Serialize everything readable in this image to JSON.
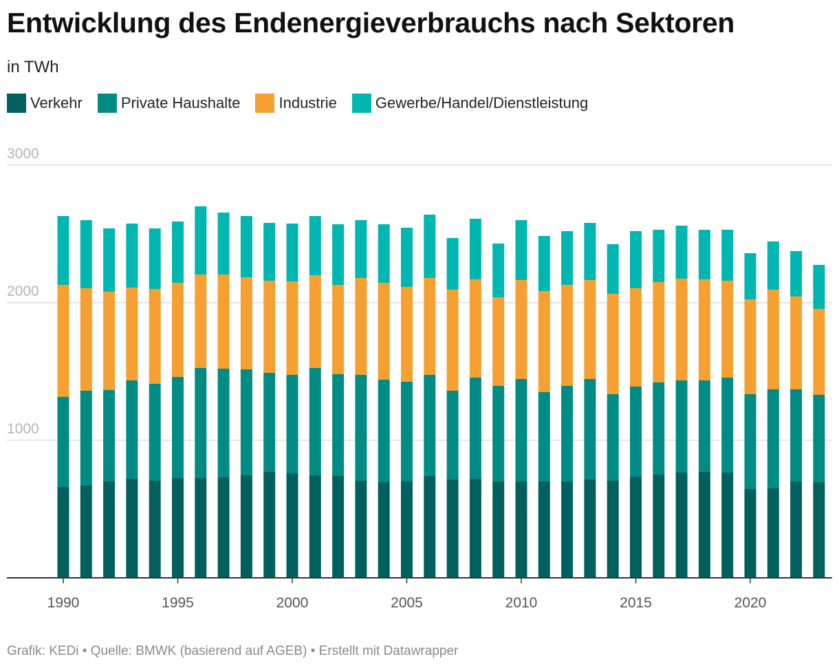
{
  "header": {
    "title": "Entwicklung des Endenergieverbrauchs nach Sektoren",
    "subtitle": "in TWh"
  },
  "footer": {
    "text": "Grafik: KEDi • Quelle: BMWK (basierend auf AGEB) • Erstellt mit Datawrapper"
  },
  "legend": [
    {
      "label": "Verkehr",
      "color": "#00605d"
    },
    {
      "label": "Private Haushalte",
      "color": "#008c85"
    },
    {
      "label": "Industrie",
      "color": "#f5a030"
    },
    {
      "label": "Gewerbe/Handel/Dienstleistung",
      "color": "#00b6b0"
    }
  ],
  "chart_data": {
    "type": "bar",
    "stacked": true,
    "title": "Entwicklung des Endenergieverbrauchs nach Sektoren",
    "subtitle": "in TWh",
    "ylim": [
      0,
      3000
    ],
    "y_ticks": [
      1000,
      2000,
      3000
    ],
    "x_ticks": [
      1990,
      1995,
      2000,
      2005,
      2010,
      2015,
      2020
    ],
    "grid": true,
    "legend_position": "top-left",
    "categories": [
      1990,
      1991,
      1992,
      1993,
      1994,
      1995,
      1996,
      1997,
      1998,
      1999,
      2000,
      2001,
      2002,
      2003,
      2004,
      2005,
      2006,
      2007,
      2008,
      2009,
      2010,
      2011,
      2012,
      2013,
      2014,
      2015,
      2016,
      2017,
      2018,
      2019,
      2020,
      2021,
      2022,
      2023
    ],
    "series": [
      {
        "name": "Verkehr",
        "color": "#00605d",
        "values": [
          660,
          670,
          700,
          720,
          705,
          725,
          725,
          730,
          745,
          770,
          760,
          745,
          740,
          705,
          695,
          700,
          740,
          715,
          720,
          700,
          700,
          700,
          700,
          715,
          705,
          735,
          750,
          765,
          770,
          765,
          645,
          650,
          700,
          695
        ]
      },
      {
        "name": "Private Haushalte",
        "color": "#008c85",
        "values": [
          655,
          690,
          665,
          715,
          705,
          735,
          800,
          790,
          770,
          720,
          715,
          780,
          740,
          770,
          745,
          725,
          735,
          645,
          735,
          695,
          745,
          650,
          695,
          730,
          630,
          655,
          670,
          670,
          665,
          690,
          690,
          720,
          670,
          635
        ]
      },
      {
        "name": "Industrie",
        "color": "#f5a030",
        "values": [
          815,
          745,
          715,
          675,
          690,
          685,
          680,
          685,
          670,
          670,
          680,
          675,
          650,
          705,
          705,
          690,
          705,
          735,
          715,
          645,
          720,
          735,
          735,
          720,
          730,
          715,
          730,
          740,
          735,
          705,
          690,
          725,
          675,
          625
        ]
      },
      {
        "name": "Gewerbe/Handel/Dienstleistung",
        "color": "#00b6b0",
        "values": [
          500,
          495,
          460,
          465,
          440,
          445,
          495,
          450,
          445,
          420,
          420,
          430,
          440,
          420,
          425,
          430,
          460,
          375,
          440,
          390,
          435,
          400,
          390,
          415,
          360,
          415,
          380,
          385,
          360,
          370,
          335,
          350,
          330,
          320
        ]
      }
    ]
  }
}
